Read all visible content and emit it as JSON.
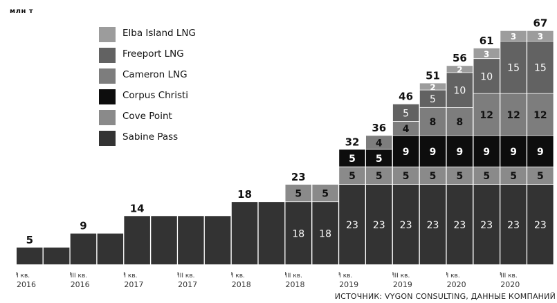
{
  "unit_label": "млн т",
  "source": "ИСТОЧНИК: VYGON CONSULTING, ДАННЫЕ КОМПАНИЙ",
  "colors": {
    "sabine": "#333333",
    "cove": "#8a8a8a",
    "corpus": "#0d0d0d",
    "cameron": "#7d7d7d",
    "freeport": "#626262",
    "elba": "#9c9c9c"
  },
  "legend": [
    {
      "label": "Elba Island LNG",
      "color": "#9c9c9c"
    },
    {
      "label": "Freeport LNG",
      "color": "#626262"
    },
    {
      "label": "Cameron LNG",
      "color": "#7d7d7d"
    },
    {
      "label": "Corpus Christi",
      "color": "#0d0d0d"
    },
    {
      "label": "Cove Point",
      "color": "#8a8a8a"
    },
    {
      "label": "Sabine Pass",
      "color": "#333333"
    }
  ],
  "chart_data": {
    "type": "bar",
    "stacked": true,
    "categories": [
      "I кв. 2016",
      "II кв. 2016",
      "III кв. 2016",
      "IV кв. 2016",
      "I кв. 2017",
      "II кв. 2017",
      "III кв. 2017",
      "IV кв. 2017",
      "I кв. 2018",
      "II кв. 2018",
      "III кв. 2018",
      "IV кв. 2018",
      "I кв. 2019",
      "II кв. 2019",
      "III кв. 2019",
      "IV кв. 2019",
      "I кв. 2020",
      "II кв. 2020",
      "III кв. 2020",
      "IV кв. 2020"
    ],
    "x_tick_labels": [
      {
        "index": 0,
        "line1": "I кв.",
        "line2": "2016"
      },
      {
        "index": 2,
        "line1": "III кв.",
        "line2": "2016"
      },
      {
        "index": 4,
        "line1": "I кв.",
        "line2": "2017"
      },
      {
        "index": 6,
        "line1": "III кв.",
        "line2": "2017"
      },
      {
        "index": 8,
        "line1": "I кв.",
        "line2": "2018"
      },
      {
        "index": 10,
        "line1": "III кв.",
        "line2": "2018"
      },
      {
        "index": 12,
        "line1": "I кв.",
        "line2": "2019"
      },
      {
        "index": 14,
        "line1": "III кв.",
        "line2": "2019"
      },
      {
        "index": 16,
        "line1": "I кв.",
        "line2": "2020"
      },
      {
        "index": 18,
        "line1": "III кв.",
        "line2": "2020"
      }
    ],
    "series": [
      {
        "name": "Sabine Pass",
        "key": "sabine",
        "values": [
          5,
          5,
          9,
          9,
          14,
          14,
          14,
          14,
          18,
          18,
          18,
          18,
          23,
          23,
          23,
          23,
          23,
          23,
          23,
          23
        ],
        "labels": [
          false,
          false,
          false,
          false,
          false,
          false,
          false,
          false,
          false,
          false,
          true,
          true,
          true,
          true,
          true,
          true,
          true,
          true,
          true,
          true
        ]
      },
      {
        "name": "Cove Point",
        "key": "cove",
        "values": [
          0,
          0,
          0,
          0,
          0,
          0,
          0,
          0,
          0,
          0,
          5,
          5,
          5,
          5,
          5,
          5,
          5,
          5,
          5,
          5
        ],
        "labels": [
          false,
          false,
          false,
          false,
          false,
          false,
          false,
          false,
          false,
          false,
          true,
          true,
          true,
          true,
          true,
          true,
          true,
          true,
          true,
          true
        ]
      },
      {
        "name": "Corpus Christi",
        "key": "corpus",
        "values": [
          0,
          0,
          0,
          0,
          0,
          0,
          0,
          0,
          0,
          0,
          0,
          0,
          5,
          5,
          9,
          9,
          9,
          9,
          9,
          9
        ],
        "labels": [
          false,
          false,
          false,
          false,
          false,
          false,
          false,
          false,
          false,
          false,
          false,
          false,
          true,
          true,
          true,
          true,
          true,
          true,
          true,
          true
        ]
      },
      {
        "name": "Cameron LNG",
        "key": "cameron",
        "values": [
          0,
          0,
          0,
          0,
          0,
          0,
          0,
          0,
          0,
          0,
          0,
          0,
          0,
          4,
          4,
          8,
          8,
          12,
          12,
          12
        ],
        "labels": [
          false,
          false,
          false,
          false,
          false,
          false,
          false,
          false,
          false,
          false,
          false,
          false,
          false,
          true,
          true,
          true,
          true,
          true,
          true,
          true
        ]
      },
      {
        "name": "Freeport LNG",
        "key": "freeport",
        "values": [
          0,
          0,
          0,
          0,
          0,
          0,
          0,
          0,
          0,
          0,
          0,
          0,
          0,
          0,
          5,
          5,
          10,
          10,
          15,
          15
        ],
        "labels": [
          false,
          false,
          false,
          false,
          false,
          false,
          false,
          false,
          false,
          false,
          false,
          false,
          false,
          false,
          true,
          true,
          true,
          true,
          true,
          true
        ]
      },
      {
        "name": "Elba Island LNG",
        "key": "elba",
        "values": [
          0,
          0,
          0,
          0,
          0,
          0,
          0,
          0,
          0,
          0,
          0,
          0,
          0,
          0,
          0,
          2,
          2,
          3,
          3,
          3
        ],
        "labels": [
          false,
          false,
          false,
          false,
          false,
          false,
          false,
          false,
          false,
          false,
          false,
          false,
          false,
          false,
          false,
          true,
          true,
          true,
          true,
          true
        ]
      }
    ],
    "totals": [
      {
        "index": 0,
        "value": 5
      },
      {
        "index": 2,
        "value": 9
      },
      {
        "index": 4,
        "value": 14
      },
      {
        "index": 8,
        "value": 18
      },
      {
        "index": 10,
        "value": 23
      },
      {
        "index": 12,
        "value": 32
      },
      {
        "index": 13,
        "value": 36
      },
      {
        "index": 14,
        "value": 46
      },
      {
        "index": 15,
        "value": 51
      },
      {
        "index": 16,
        "value": 56
      },
      {
        "index": 17,
        "value": 61
      },
      {
        "index": 19,
        "value": 67
      }
    ],
    "ylim": [
      0,
      67
    ],
    "grid": false,
    "legend_position": "top-left"
  }
}
